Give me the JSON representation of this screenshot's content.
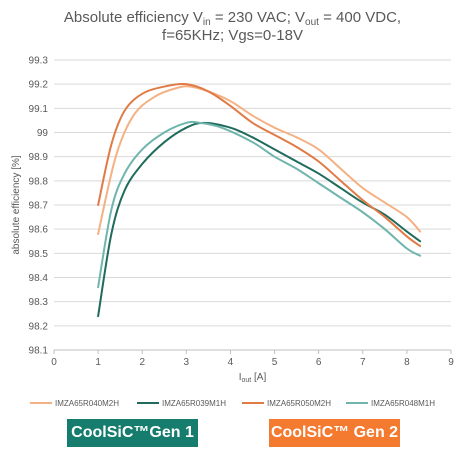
{
  "title": {
    "line1_prefix": "Absolute efficiency V",
    "line1_sub_in": "in",
    "line1_mid": " = 230 VAC; V",
    "line1_sub_out": "out",
    "line1_suffix": " = 400 VDC,",
    "line2": "f=65KHz; Vgs=0-18V"
  },
  "badges": {
    "gen1": "CoolSiC™Gen 1",
    "gen2": "CoolSiC™ Gen 2"
  },
  "colors": {
    "gen1_badge": "#167d6e",
    "gen2_badge": "#f47a30"
  },
  "chart_data": {
    "type": "line",
    "title": "Absolute efficiency Vin = 230 VAC; Vout = 400 VDC, f=65KHz; Vgs=0-18V",
    "xlabel_prefix": "I",
    "xlabel_sub": "out",
    "xlabel_suffix": " [A]",
    "ylabel": "absolute efficiency [%]",
    "xlim": [
      0,
      9
    ],
    "ylim": [
      98.1,
      99.3
    ],
    "xticks": [
      "0",
      "1",
      "2",
      "3",
      "4",
      "5",
      "6",
      "7",
      "8",
      "9"
    ],
    "yticks": [
      "98.1",
      "98.2",
      "98.3",
      "98.4",
      "98.5",
      "98.6",
      "98.7",
      "98.8",
      "98.9",
      "99",
      "99.1",
      "99.2",
      "99.3"
    ],
    "grid": "horizontal",
    "legend_position": "bottom",
    "series": [
      {
        "name": "IMZA65R040M2H",
        "color": "#f4b183",
        "points": [
          [
            1.0,
            98.58
          ],
          [
            1.4,
            98.9
          ],
          [
            1.8,
            99.07
          ],
          [
            2.3,
            99.15
          ],
          [
            2.8,
            99.185
          ],
          [
            3.1,
            99.19
          ],
          [
            3.5,
            99.17
          ],
          [
            4.0,
            99.13
          ],
          [
            4.5,
            99.07
          ],
          [
            5.0,
            99.02
          ],
          [
            5.5,
            98.98
          ],
          [
            6.0,
            98.93
          ],
          [
            6.5,
            98.85
          ],
          [
            7.0,
            98.77
          ],
          [
            7.5,
            98.71
          ],
          [
            8.0,
            98.65
          ],
          [
            8.3,
            98.59
          ]
        ]
      },
      {
        "name": "IMZA65R039M1H",
        "color": "#1f6b5c",
        "points": [
          [
            1.0,
            98.24
          ],
          [
            1.3,
            98.58
          ],
          [
            1.6,
            98.76
          ],
          [
            2.0,
            98.87
          ],
          [
            2.5,
            98.96
          ],
          [
            3.0,
            99.02
          ],
          [
            3.4,
            99.04
          ],
          [
            4.0,
            99.02
          ],
          [
            4.5,
            98.98
          ],
          [
            5.0,
            98.93
          ],
          [
            5.5,
            98.88
          ],
          [
            6.0,
            98.83
          ],
          [
            6.5,
            98.77
          ],
          [
            7.0,
            98.71
          ],
          [
            7.5,
            98.66
          ],
          [
            8.0,
            98.59
          ],
          [
            8.3,
            98.55
          ]
        ]
      },
      {
        "name": "IMZA65R050M2H",
        "color": "#e07b45",
        "points": [
          [
            1.0,
            98.7
          ],
          [
            1.3,
            98.95
          ],
          [
            1.6,
            99.09
          ],
          [
            2.0,
            99.16
          ],
          [
            2.5,
            99.19
          ],
          [
            3.0,
            99.2
          ],
          [
            3.5,
            99.17
          ],
          [
            4.0,
            99.11
          ],
          [
            4.5,
            99.04
          ],
          [
            5.0,
            98.99
          ],
          [
            5.5,
            98.94
          ],
          [
            6.0,
            98.88
          ],
          [
            6.5,
            98.8
          ],
          [
            7.0,
            98.72
          ],
          [
            7.5,
            98.65
          ],
          [
            8.0,
            98.57
          ],
          [
            8.3,
            98.53
          ]
        ]
      },
      {
        "name": "IMZA65R048M1H",
        "color": "#6fb5ad",
        "points": [
          [
            1.0,
            98.36
          ],
          [
            1.3,
            98.68
          ],
          [
            1.6,
            98.83
          ],
          [
            2.0,
            98.93
          ],
          [
            2.5,
            99.0
          ],
          [
            3.0,
            99.04
          ],
          [
            3.3,
            99.04
          ],
          [
            3.8,
            99.02
          ],
          [
            4.5,
            98.96
          ],
          [
            5.0,
            98.9
          ],
          [
            5.5,
            98.85
          ],
          [
            6.0,
            98.79
          ],
          [
            6.5,
            98.73
          ],
          [
            7.0,
            98.67
          ],
          [
            7.5,
            98.6
          ],
          [
            8.0,
            98.52
          ],
          [
            8.3,
            98.49
          ]
        ]
      }
    ]
  }
}
